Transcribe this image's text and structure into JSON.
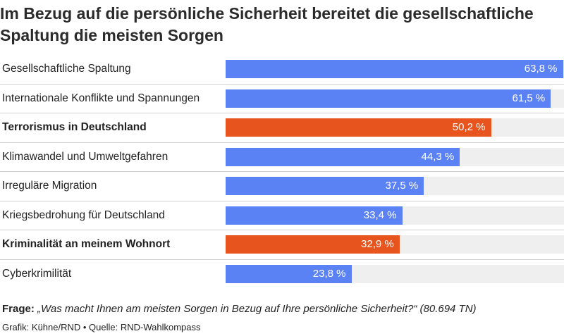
{
  "title": "Im Bezug auf die persönliche Sicherheit bereitet die gesellschaftliche Spaltung die meisten Sorgen",
  "colors": {
    "default": "#5b82f5",
    "highlight": "#e8541e",
    "track": "#efefef"
  },
  "chart_data": {
    "type": "bar",
    "orientation": "horizontal",
    "title": "Im Bezug auf die persönliche Sicherheit bereitet die gesellschaftliche Spaltung die meisten Sorgen",
    "xlim": [
      0,
      64
    ],
    "grid": false,
    "categories": [
      "Gesellschaftliche Spaltung",
      "Internationale Konflikte und Spannungen",
      "Terrorismus in Deutschland",
      "Klimawandel und Umweltgefahren",
      "Irreguläre Migration",
      "Kriegsbedrohung für Deutschland",
      "Kriminalität an meinem Wohnort",
      "Cyberkrimilität"
    ],
    "values": [
      63.8,
      61.5,
      50.2,
      44.3,
      37.5,
      33.4,
      32.9,
      23.8
    ],
    "value_labels": [
      "63,8 %",
      "61,5 %",
      "50,2 %",
      "44,3 %",
      "37,5 %",
      "33,4 %",
      "32,9 %",
      "23,8 %"
    ],
    "highlighted": [
      false,
      false,
      true,
      false,
      false,
      false,
      true,
      false
    ]
  },
  "footer": {
    "question_label": "Frage:",
    "question_text": "„Was macht Ihnen am meisten Sorgen in Bezug auf Ihre persönliche Sicherheit?“ (80.694 TN)",
    "credit": "Grafik: Kühne/RND • Quelle: RND-Wahlkompass"
  }
}
